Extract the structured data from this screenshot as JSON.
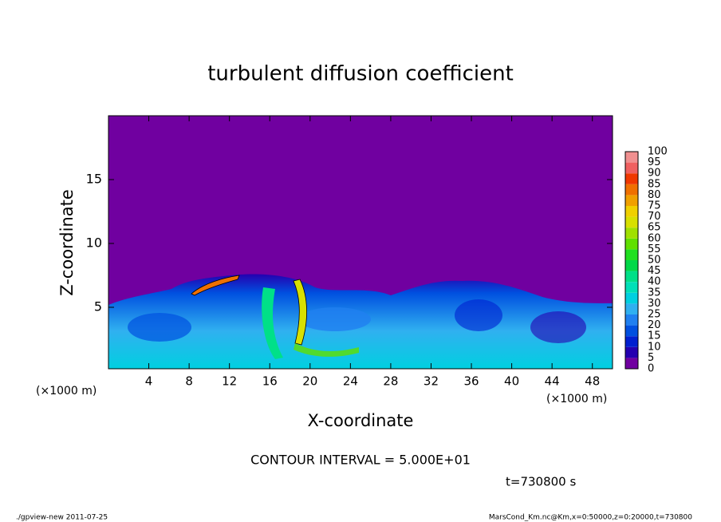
{
  "chart_data": {
    "type": "contour",
    "title": "turbulent diffusion coefficient",
    "xlabel": "X-coordinate",
    "ylabel": "Z-coordinate",
    "axis_unit": "(×1000 m)",
    "xlim": [
      0,
      50
    ],
    "xticks": [
      4,
      8,
      12,
      16,
      20,
      24,
      28,
      32,
      36,
      40,
      44,
      48
    ],
    "ylim": [
      0,
      20
    ],
    "yticks": [
      5,
      10,
      15
    ],
    "colorbar": {
      "levels": [
        0,
        5,
        10,
        15,
        20,
        25,
        30,
        35,
        40,
        45,
        50,
        55,
        60,
        65,
        70,
        75,
        80,
        85,
        90,
        95,
        100
      ],
      "colors": [
        "#7000a0",
        "#2400b0",
        "#0020d0",
        "#0050e0",
        "#2080f0",
        "#30b0f0",
        "#00d0e0",
        "#00e0b8",
        "#00e088",
        "#00d848",
        "#20e020",
        "#60e000",
        "#a0e000",
        "#d8e000",
        "#f0d000",
        "#f0a000",
        "#f07000",
        "#f03800",
        "#f06060",
        "#f09090"
      ]
    },
    "annotation": "CONTOUR INTERVAL = 5.000E+01",
    "time_label": "t=730800 s",
    "footer_left": "./gpview-new  2011-07-25",
    "footer_right": "MarsCond_Km.nc@Km,x=0:50000,z=0:20000,t=730800"
  }
}
